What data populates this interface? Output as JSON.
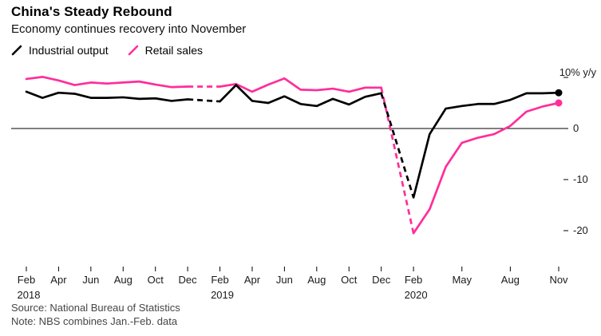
{
  "header": {
    "title": "China's Steady Rebound",
    "subtitle": "Economy continues recovery into November"
  },
  "legend": [
    {
      "label": "Industrial output",
      "color": "#000000"
    },
    {
      "label": "Retail sales",
      "color": "#ff2e9a"
    }
  ],
  "chart_data": {
    "type": "line",
    "title": "China's Steady Rebound",
    "subtitle": "Economy continues recovery into November",
    "ylabel": "% y/y",
    "ylim": [
      -22.5,
      10.5
    ],
    "grid": false,
    "legend_position": "top-left",
    "x": [
      "Feb 2018",
      "Mar 2018",
      "Apr 2018",
      "May 2018",
      "Jun 2018",
      "Jul 2018",
      "Aug 2018",
      "Sep 2018",
      "Oct 2018",
      "Nov 2018",
      "Dec 2018",
      "Jan 2019",
      "Feb 2019",
      "Mar 2019",
      "Apr 2019",
      "May 2019",
      "Jun 2019",
      "Jul 2019",
      "Aug 2019",
      "Sep 2019",
      "Oct 2019",
      "Nov 2019",
      "Dec 2019",
      "Jan 2020",
      "Feb 2020",
      "Mar 2020",
      "Apr 2020",
      "May 2020",
      "Jun 2020",
      "Jul 2020",
      "Aug 2020",
      "Sep 2020",
      "Oct 2020",
      "Nov 2020"
    ],
    "series": [
      {
        "name": "Industrial output",
        "color": "#000000",
        "values": [
          7.2,
          6.0,
          7.0,
          6.8,
          6.0,
          6.0,
          6.1,
          5.8,
          5.9,
          5.4,
          5.7,
          null,
          5.3,
          8.5,
          5.4,
          5.0,
          6.3,
          4.8,
          4.4,
          5.8,
          4.7,
          6.2,
          6.9,
          null,
          -13.5,
          -1.1,
          3.9,
          4.4,
          4.8,
          4.8,
          5.6,
          6.9,
          6.9,
          7.0
        ]
      },
      {
        "name": "Retail sales",
        "color": "#ff2e9a",
        "values": [
          9.7,
          10.1,
          9.4,
          8.5,
          9.0,
          8.8,
          9.0,
          9.2,
          8.6,
          8.1,
          8.2,
          null,
          8.2,
          8.7,
          7.2,
          8.6,
          9.8,
          7.6,
          7.5,
          7.8,
          7.2,
          8.0,
          8.0,
          null,
          -20.5,
          -15.8,
          -7.5,
          -2.8,
          -1.8,
          -1.1,
          0.5,
          3.3,
          4.3,
          5.0
        ]
      }
    ],
    "dashed_note": "Jan values missing (NBS combines Jan.-Feb. data); Dec-to-Feb segments drawn dashed",
    "y_ticks": [
      {
        "value": 10,
        "label": "10% y/y"
      },
      {
        "value": 0,
        "label": "0"
      },
      {
        "value": -10,
        "label": "-10"
      },
      {
        "value": -20,
        "label": "-20"
      }
    ],
    "x_ticks": [
      {
        "i": 0,
        "label": "Feb",
        "year": "2018"
      },
      {
        "i": 2,
        "label": "Apr"
      },
      {
        "i": 4,
        "label": "Jun"
      },
      {
        "i": 6,
        "label": "Aug"
      },
      {
        "i": 8,
        "label": "Oct"
      },
      {
        "i": 10,
        "label": "Dec"
      },
      {
        "i": 12,
        "label": "Feb",
        "year": "2019"
      },
      {
        "i": 14,
        "label": "Apr"
      },
      {
        "i": 16,
        "label": "Jun"
      },
      {
        "i": 18,
        "label": "Aug"
      },
      {
        "i": 20,
        "label": "Oct"
      },
      {
        "i": 22,
        "label": "Dec"
      },
      {
        "i": 24,
        "label": "Feb",
        "year": "2020"
      },
      {
        "i": 27,
        "label": "May"
      },
      {
        "i": 30,
        "label": "Aug"
      },
      {
        "i": 33,
        "label": "Nov"
      }
    ],
    "end_markers": true
  },
  "footer": {
    "source": "Source: National Bureau of Statistics",
    "note": "Note: NBS combines Jan.-Feb. data"
  }
}
